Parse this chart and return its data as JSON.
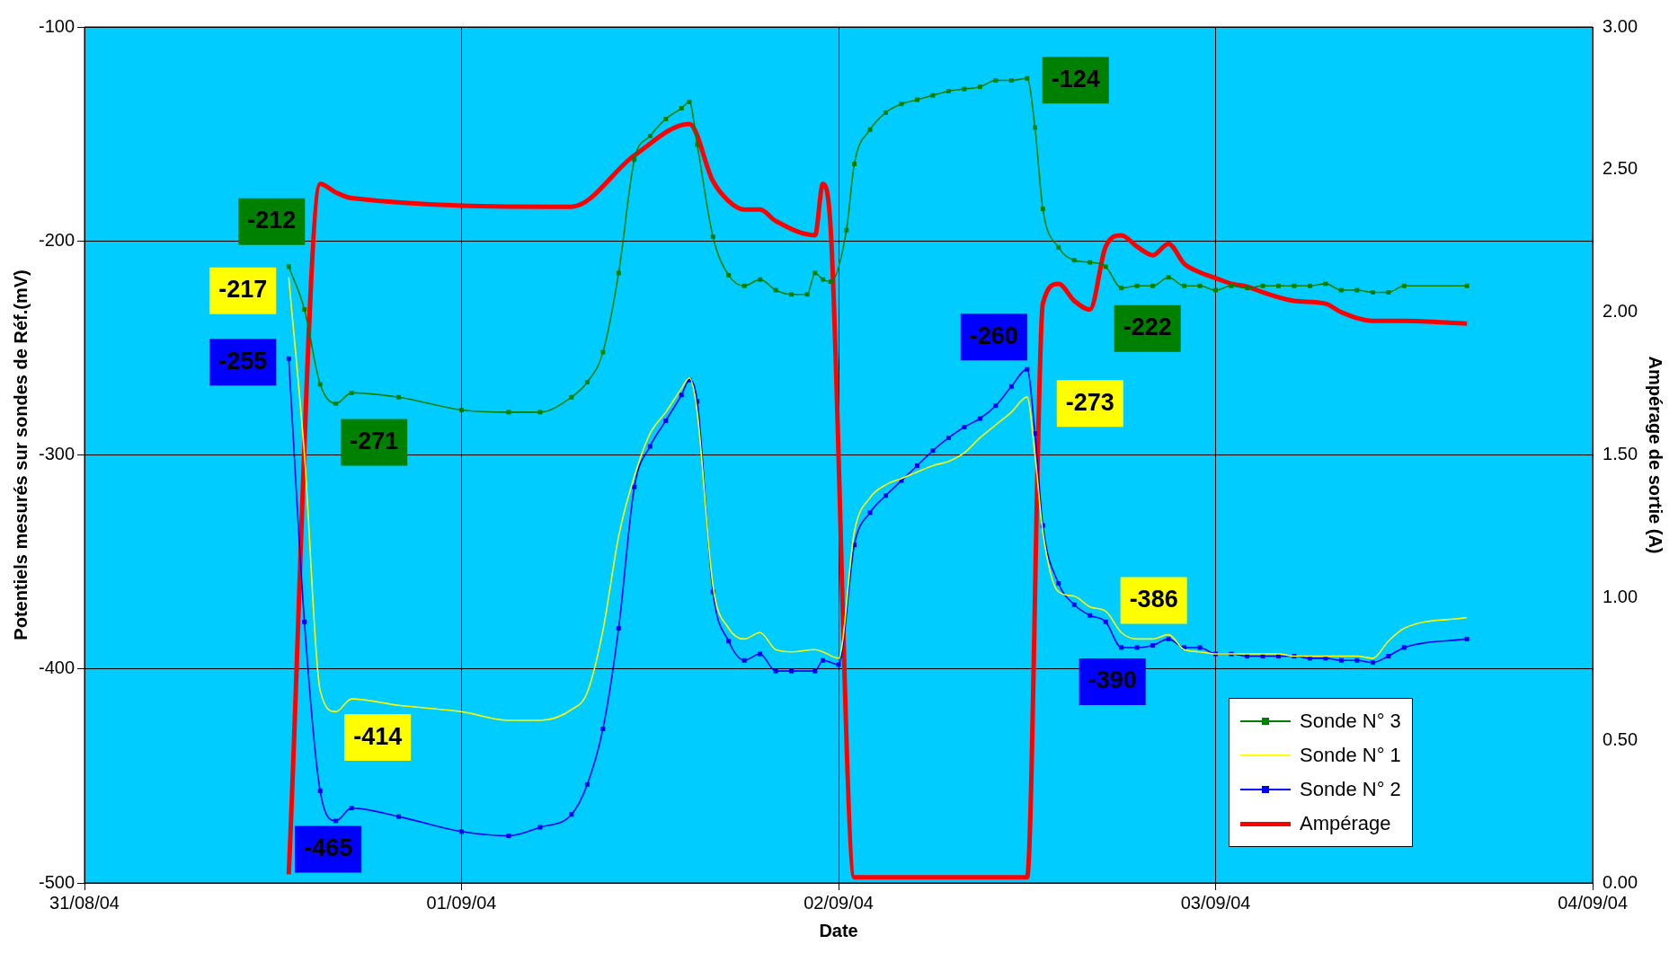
{
  "chart_data": {
    "type": "line",
    "xlabel": "Date",
    "ylabel": "Potentiels mesurés sur sondes de Réf.(mV)",
    "y2label": "Ampérage de sortie (A)",
    "xlim": [
      "--08-31",
      "--09-04"
    ],
    "xticks": [
      {
        "value": "--08-31",
        "label": "31/08/04"
      },
      {
        "value": "--09-01",
        "label": "01/09/04"
      },
      {
        "value": "--09-02",
        "label": "02/09/04"
      },
      {
        "value": "--09-03",
        "label": "03/09/04"
      },
      {
        "value": "--09-04",
        "label": "04/09/04"
      }
    ],
    "ylim": [
      -500,
      -100
    ],
    "yticks": [
      -500,
      -400,
      -300,
      -200,
      -100
    ],
    "y2lim": [
      0,
      3
    ],
    "y2ticks": [
      {
        "value": 0,
        "label": "0.00"
      },
      {
        "value": 0.5,
        "label": "0.50"
      },
      {
        "value": 1,
        "label": "1.00"
      },
      {
        "value": 1.5,
        "label": "1.50"
      },
      {
        "value": 2,
        "label": "2.00"
      },
      {
        "value": 2.5,
        "label": "2.50"
      },
      {
        "value": 3,
        "label": "3.00"
      }
    ],
    "grid": true,
    "legend": "bottom right",
    "line_style": "solid",
    "series": [
      {
        "name": "Sonde N° 3",
        "color": "#008000",
        "marker": "square",
        "x": [
          "--08-31T13:00",
          "--08-31T14:00",
          "--08-31T15:00",
          "--08-31T16:00",
          "--08-31T17:00",
          "--08-31T20:00",
          "--09-01T00:00",
          "--09-01T03:00",
          "--09-01T05:00",
          "--09-01T07:00",
          "--09-01T08:00",
          "--09-01T09:00",
          "--09-01T10:00",
          "--09-01T11:00",
          "--09-01T12:00",
          "--09-01T13:00",
          "--09-01T14:00",
          "--09-01T14:30",
          "--09-01T15:00",
          "--09-01T16:00",
          "--09-01T17:00",
          "--09-01T18:00",
          "--09-01T19:00",
          "--09-01T20:00",
          "--09-01T21:00",
          "--09-01T22:00",
          "--09-01T22:30",
          "--09-01T23:00",
          "--09-01T23:30",
          "--09-02T00:30",
          "--09-02T01:00",
          "--09-02T02:00",
          "--09-02T03:00",
          "--09-02T04:00",
          "--09-02T05:00",
          "--09-02T06:00",
          "--09-02T07:00",
          "--09-02T08:00",
          "--09-02T09:00",
          "--09-02T10:00",
          "--09-02T11:00",
          "--09-02T12:00",
          "--09-02T12:30",
          "--09-02T13:00",
          "--09-02T14:00",
          "--09-02T15:00",
          "--09-02T16:00",
          "--09-02T17:00",
          "--09-02T18:00",
          "--09-02T19:00",
          "--09-02T20:00",
          "--09-02T21:00",
          "--09-02T22:00",
          "--09-02T23:00",
          "--09-03T00:00",
          "--09-03T01:00",
          "--09-03T02:00",
          "--09-03T03:00",
          "--09-03T04:00",
          "--09-03T05:00",
          "--09-03T06:00",
          "--09-03T07:00",
          "--09-03T08:00",
          "--09-03T09:00",
          "--09-03T10:00",
          "--09-03T11:00",
          "--09-03T12:00",
          "--09-03T16:00"
        ],
        "values": [
          -212,
          -232,
          -267,
          -276,
          -271,
          -273,
          -279,
          -280,
          -280,
          -273,
          -266,
          -252,
          -215,
          -162,
          -151,
          -143,
          -138,
          -135,
          -155,
          -198,
          -216,
          -221,
          -218,
          -223,
          -225,
          -225,
          -215,
          -218,
          -219,
          -195,
          -164,
          -148,
          -140,
          -136,
          -134,
          -132,
          -130,
          -129,
          -128,
          -125,
          -125,
          -124,
          -147,
          -185,
          -203,
          -209,
          -210,
          -212,
          -222,
          -221,
          -221,
          -217,
          -221,
          -221,
          -223,
          -221,
          -222,
          -221,
          -221,
          -221,
          -221,
          -220,
          -223,
          -223,
          -224,
          -224,
          -221,
          -221
        ]
      },
      {
        "name": "Sonde N° 1",
        "color": "#ffff00",
        "marker": "none",
        "x": [
          "--08-31T13:00",
          "--08-31T14:00",
          "--08-31T15:00",
          "--08-31T16:00",
          "--08-31T17:00",
          "--08-31T20:00",
          "--09-01T00:00",
          "--09-01T03:00",
          "--09-01T05:00",
          "--09-01T07:00",
          "--09-01T08:00",
          "--09-01T09:00",
          "--09-01T10:00",
          "--09-01T11:00",
          "--09-01T12:00",
          "--09-01T13:00",
          "--09-01T14:00",
          "--09-01T14:30",
          "--09-01T15:00",
          "--09-01T16:00",
          "--09-01T17:00",
          "--09-01T18:00",
          "--09-01T19:00",
          "--09-01T20:00",
          "--09-01T21:00",
          "--09-01T22:30",
          "--09-01T23:00",
          "--09-02T00:00",
          "--09-02T01:00",
          "--09-02T02:00",
          "--09-02T03:00",
          "--09-02T04:00",
          "--09-02T05:00",
          "--09-02T06:00",
          "--09-02T07:00",
          "--09-02T08:00",
          "--09-02T09:00",
          "--09-02T10:00",
          "--09-02T11:00",
          "--09-02T12:00",
          "--09-02T12:30",
          "--09-02T13:00",
          "--09-02T14:00",
          "--09-02T15:00",
          "--09-02T16:00",
          "--09-02T17:00",
          "--09-02T18:00",
          "--09-02T19:00",
          "--09-02T20:00",
          "--09-02T21:00",
          "--09-02T22:00",
          "--09-02T23:00",
          "--09-03T00:00",
          "--09-03T01:00",
          "--09-03T02:00",
          "--09-03T03:00",
          "--09-03T04:00",
          "--09-03T05:00",
          "--09-03T06:00",
          "--09-03T07:00",
          "--09-03T08:00",
          "--09-03T09:00",
          "--09-03T10:00",
          "--09-03T11:00",
          "--09-03T12:00",
          "--09-03T16:00"
        ],
        "values": [
          -217,
          -300,
          -410,
          -420,
          -414,
          -417,
          -420,
          -424,
          -424,
          -419,
          -411,
          -382,
          -338,
          -310,
          -290,
          -280,
          -269,
          -264,
          -280,
          -361,
          -381,
          -386,
          -383,
          -391,
          -392,
          -391,
          -392,
          -395,
          -336,
          -320,
          -314,
          -311,
          -308,
          -305,
          -303,
          -299,
          -292,
          -286,
          -280,
          -273,
          -300,
          -336,
          -364,
          -366,
          -371,
          -373,
          -383,
          -386,
          -386,
          -384,
          -391,
          -392,
          -393,
          -393,
          -393,
          -393,
          -393,
          -394,
          -394,
          -394,
          -394,
          -394,
          -395,
          -387,
          -381,
          -376
        ]
      },
      {
        "name": "Sonde N° 2",
        "color": "#0000ff",
        "marker": "square",
        "x": [
          "--08-31T13:00",
          "--08-31T14:00",
          "--08-31T15:00",
          "--08-31T16:00",
          "--08-31T17:00",
          "--08-31T20:00",
          "--09-01T00:00",
          "--09-01T03:00",
          "--09-01T05:00",
          "--09-01T07:00",
          "--09-01T08:00",
          "--09-01T09:00",
          "--09-01T10:00",
          "--09-01T11:00",
          "--09-01T12:00",
          "--09-01T13:00",
          "--09-01T14:00",
          "--09-01T14:30",
          "--09-01T15:00",
          "--09-01T16:00",
          "--09-01T17:00",
          "--09-01T18:00",
          "--09-01T19:00",
          "--09-01T20:00",
          "--09-01T21:00",
          "--09-01T22:30",
          "--09-01T23:00",
          "--09-02T00:00",
          "--09-02T01:00",
          "--09-02T02:00",
          "--09-02T03:00",
          "--09-02T04:00",
          "--09-02T05:00",
          "--09-02T06:00",
          "--09-02T07:00",
          "--09-02T08:00",
          "--09-02T09:00",
          "--09-02T10:00",
          "--09-02T11:00",
          "--09-02T12:00",
          "--09-02T12:30",
          "--09-02T13:00",
          "--09-02T14:00",
          "--09-02T15:00",
          "--09-02T16:00",
          "--09-02T17:00",
          "--09-02T18:00",
          "--09-02T19:00",
          "--09-02T20:00",
          "--09-02T21:00",
          "--09-02T22:00",
          "--09-02T23:00",
          "--09-03T00:00",
          "--09-03T01:00",
          "--09-03T02:00",
          "--09-03T03:00",
          "--09-03T04:00",
          "--09-03T05:00",
          "--09-03T06:00",
          "--09-03T07:00",
          "--09-03T08:00",
          "--09-03T09:00",
          "--09-03T10:00",
          "--09-03T11:00",
          "--09-03T12:00",
          "--09-03T16:00"
        ],
        "values": [
          -255,
          -378,
          -457,
          -471,
          -465,
          -469,
          -476,
          -478,
          -474,
          -468,
          -454,
          -428,
          -381,
          -315,
          -296,
          -284,
          -272,
          -265,
          -275,
          -364,
          -387,
          -396,
          -393,
          -401,
          -401,
          -401,
          -396,
          -398,
          -342,
          -327,
          -319,
          -312,
          -305,
          -298,
          -292,
          -287,
          -283,
          -277,
          -268,
          -260,
          -290,
          -333,
          -360,
          -370,
          -375,
          -378,
          -390,
          -390,
          -389,
          -386,
          -390,
          -390,
          -393,
          -393,
          -394,
          -394,
          -394,
          -394,
          -395,
          -395,
          -396,
          -396,
          -397,
          -394,
          -390,
          -386
        ]
      },
      {
        "name": "Ampérage",
        "color": "#ff0000",
        "marker": "none",
        "axis": "y2",
        "x": [
          "--08-31T13:00",
          "--08-31T15:00",
          "--08-31T16:00",
          "--08-31T17:00",
          "--09-01T07:00",
          "--09-01T11:00",
          "--09-01T14:30",
          "--09-01T16:00",
          "--09-01T17:00",
          "--09-01T18:00",
          "--09-01T19:00",
          "--09-01T20:00",
          "--09-01T22:30",
          "--09-01T23:00",
          "--09-01T23:30",
          "--09-02T01:00",
          "--09-02T12:00",
          "--09-02T13:00",
          "--09-02T14:00",
          "--09-02T15:00",
          "--09-02T16:00",
          "--09-02T17:00",
          "--09-02T18:00",
          "--09-02T19:00",
          "--09-02T20:00",
          "--09-02T21:00",
          "--09-02T22:00",
          "--09-02T23:00",
          "--09-03T00:00",
          "--09-03T01:00",
          "--09-03T02:00",
          "--09-03T03:00",
          "--09-03T05:00",
          "--09-03T07:00",
          "--09-03T08:00",
          "--09-03T10:00",
          "--09-03T12:00",
          "--09-03T16:00"
        ],
        "values": [
          0.03,
          2.45,
          2.42,
          2.4,
          2.37,
          2.55,
          2.66,
          2.46,
          2.39,
          2.36,
          2.36,
          2.32,
          2.27,
          2.45,
          2.29,
          0.02,
          0.02,
          2.03,
          2.1,
          2.04,
          2.01,
          2.23,
          2.27,
          2.23,
          2.2,
          2.24,
          2.17,
          2.14,
          2.12,
          2.1,
          2.09,
          2.07,
          2.04,
          2.03,
          2.0,
          1.97,
          1.97,
          1.96
        ]
      }
    ],
    "annotations": [
      {
        "text": "-212",
        "x": "--08-31T13:00",
        "y": -212
      },
      {
        "text": "-217",
        "x": "--08-31T13:00",
        "y": -217
      },
      {
        "text": "-255",
        "x": "--08-31T13:00",
        "y": -255
      },
      {
        "text": "-271",
        "x": "--08-31T17:00",
        "y": -271
      },
      {
        "text": "-414",
        "x": "--08-31T17:00",
        "y": -414
      },
      {
        "text": "-465",
        "x": "--08-31T17:00",
        "y": -465
      },
      {
        "text": "-124",
        "x": "--09-02T12:00",
        "y": -124
      },
      {
        "text": "-260",
        "x": "--09-02T12:00",
        "y": -260
      },
      {
        "text": "-273",
        "x": "--09-02T12:00",
        "y": -273
      },
      {
        "text": "-222",
        "x": "--09-02T18:00",
        "y": -222
      },
      {
        "text": "-386",
        "x": "--09-02T20:00",
        "y": -386
      },
      {
        "text": "-390",
        "x": "--09-02T18:00",
        "y": -390
      }
    ]
  }
}
